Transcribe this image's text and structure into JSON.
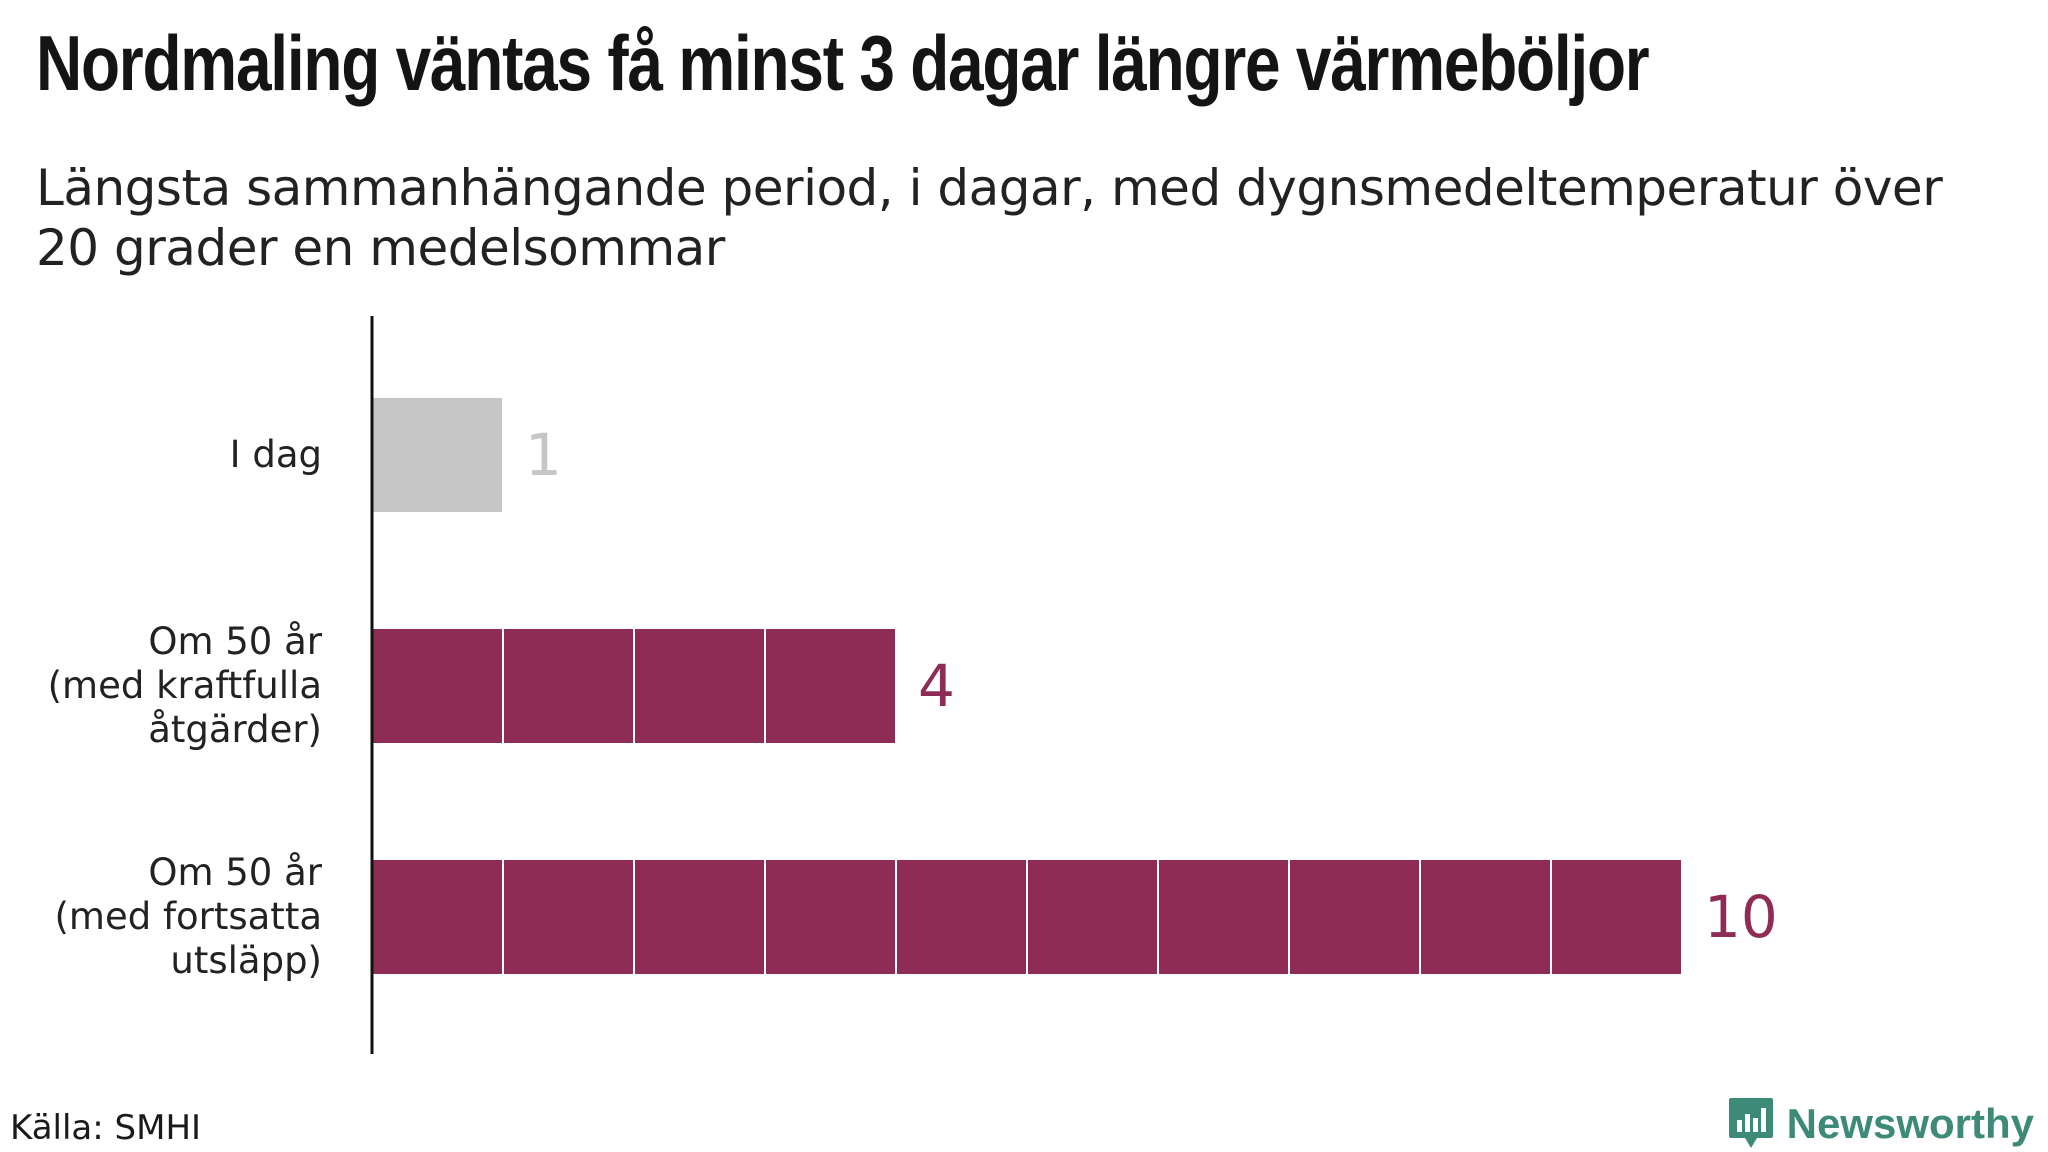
{
  "title": "Nordmaling väntas få minst 3 dagar längre värmeböljor",
  "subtitle": "Längsta sammanhängande period, i dagar, med dygnsmedeltemperatur över 20 grader en medelsommar",
  "source": "Källa: SMHI",
  "brand": {
    "name": "Newsworthy",
    "icon": "newsworthy-logo-icon",
    "color": "#3d8a78"
  },
  "colors": {
    "today": "#c6c6c6",
    "future": "#8f2c55",
    "axis": "#111111"
  },
  "chart_data": {
    "type": "bar",
    "orientation": "horizontal",
    "unit": "dagar",
    "categories": [
      [
        "I dag"
      ],
      [
        "Om 50 år",
        "(med kraftfulla",
        "åtgärder)"
      ],
      [
        "Om 50 år",
        "(med fortsatta",
        "utsläpp)"
      ]
    ],
    "values": [
      1,
      4,
      10
    ],
    "value_labels": [
      "1",
      "4",
      "10"
    ],
    "bar_colors": [
      "#c6c6c6",
      "#8f2c55",
      "#8f2c55"
    ],
    "segmented": true,
    "xlim": [
      0,
      10
    ],
    "grid": false,
    "legend": "none"
  }
}
